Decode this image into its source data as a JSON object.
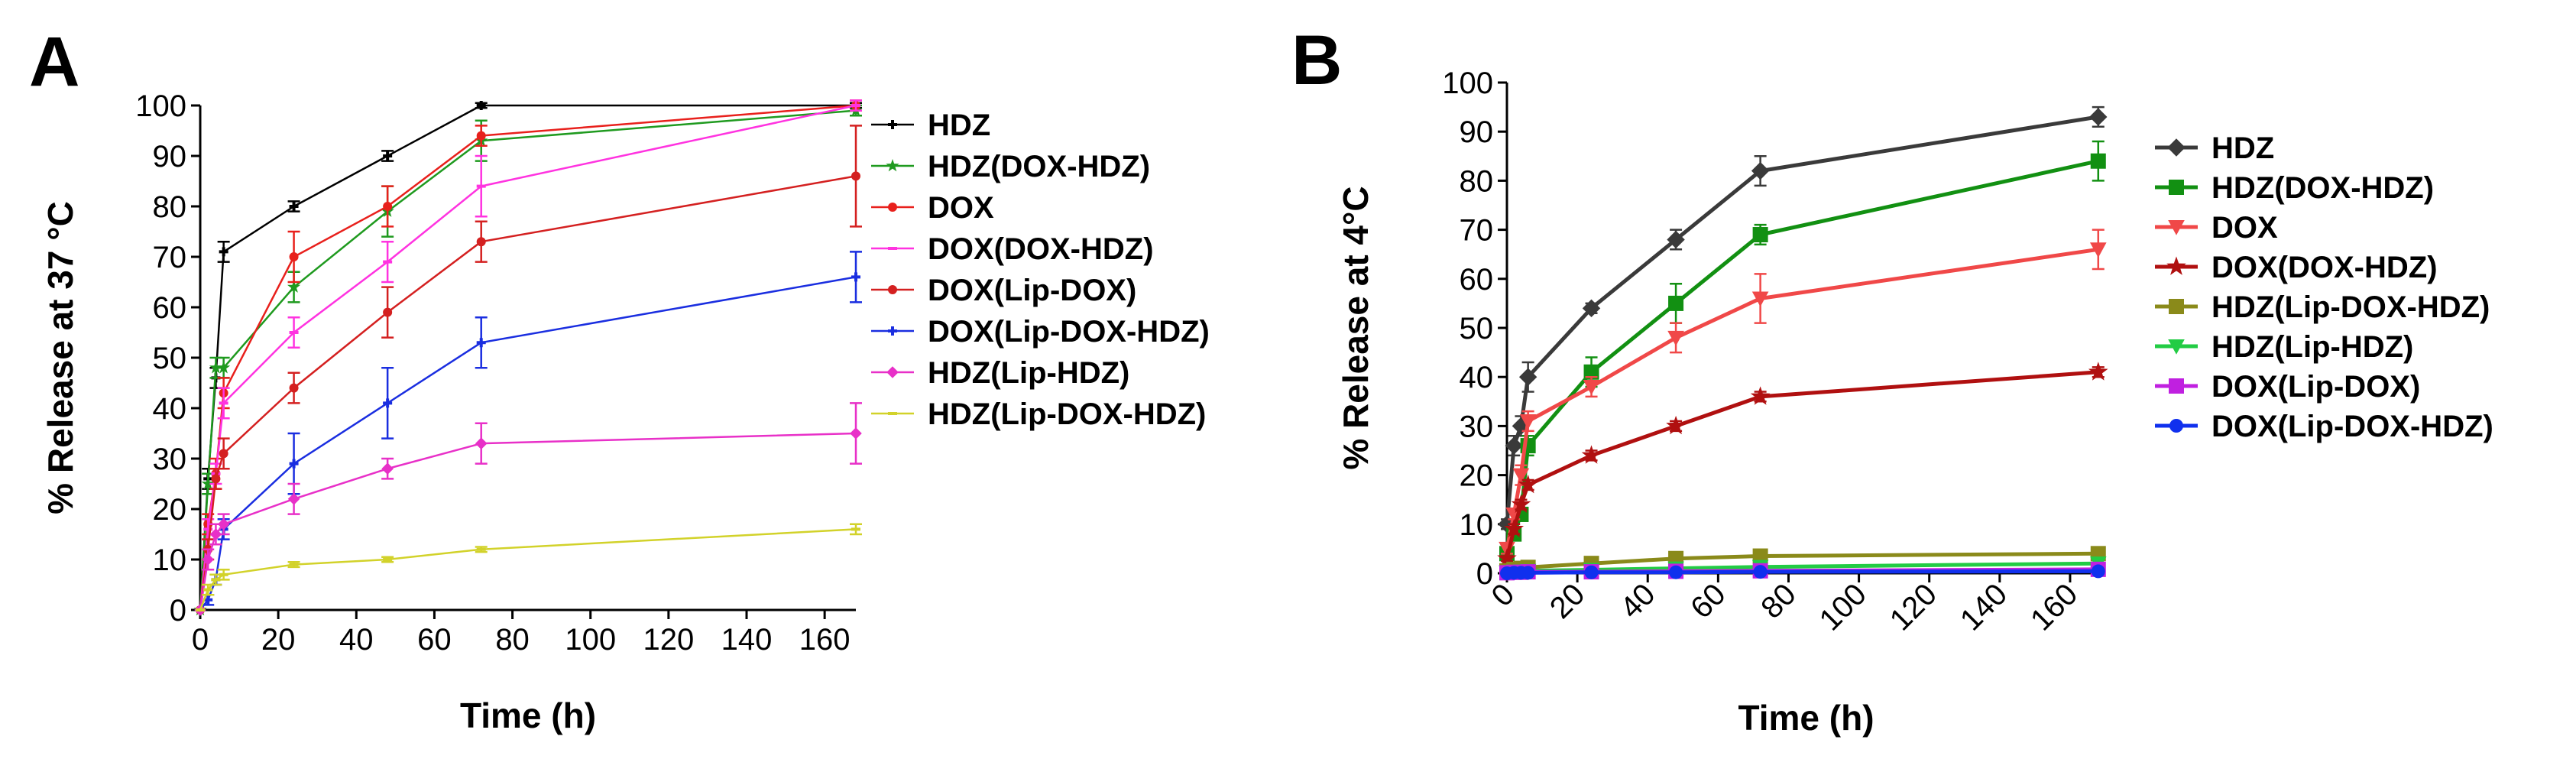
{
  "panel_labels": {
    "A": "A",
    "B": "B"
  },
  "chart_data": [
    {
      "type": "line",
      "panel": "A",
      "title": "",
      "xlabel": "Time (h)",
      "ylabel": "% Release at 37 °C",
      "xlim": [
        0,
        168
      ],
      "ylim": [
        0,
        100
      ],
      "xticks": [
        0,
        20,
        40,
        60,
        80,
        100,
        120,
        140,
        160
      ],
      "yticks": [
        0,
        10,
        20,
        30,
        40,
        50,
        60,
        70,
        80,
        90,
        100
      ],
      "x": [
        0,
        2,
        4,
        6,
        24,
        48,
        72,
        168
      ],
      "series": [
        {
          "name": "HDZ",
          "color": "#000000",
          "marker": "cross",
          "values": [
            0,
            26,
            46,
            71,
            80,
            90,
            100,
            100
          ],
          "errors": [
            0,
            2,
            2,
            2,
            1,
            1,
            0.5,
            0.5
          ]
        },
        {
          "name": "HDZ(DOX-HDZ)",
          "color": "#1f9a1f",
          "marker": "star",
          "values": [
            0,
            25,
            48,
            48,
            64,
            79,
            93,
            99
          ],
          "errors": [
            0,
            2,
            2,
            2,
            3,
            5,
            4,
            1
          ]
        },
        {
          "name": "DOX",
          "color": "#e8201c",
          "marker": "dot",
          "values": [
            0,
            17,
            27,
            43,
            70,
            80,
            94,
            100
          ],
          "errors": [
            0,
            2,
            3,
            3,
            5,
            4,
            2,
            1
          ]
        },
        {
          "name": "DOX(DOX-HDZ)",
          "color": "#ff33e0",
          "marker": "dash",
          "values": [
            0,
            16,
            27,
            41,
            55,
            69,
            84,
            100
          ],
          "errors": [
            0,
            2,
            2,
            3,
            3,
            4,
            6,
            1
          ]
        },
        {
          "name": "DOX(Lip-DOX)",
          "color": "#d42020",
          "marker": "dot",
          "values": [
            0,
            12,
            26,
            31,
            44,
            59,
            73,
            86
          ],
          "errors": [
            0,
            2,
            2,
            3,
            3,
            5,
            4,
            10
          ]
        },
        {
          "name": "DOX(Lip-DOX-HDZ)",
          "color": "#1a2ee0",
          "marker": "cross",
          "values": [
            0,
            2,
            6,
            16,
            29,
            41,
            53,
            66
          ],
          "errors": [
            0,
            1,
            1,
            2,
            6,
            7,
            5,
            5
          ]
        },
        {
          "name": "HDZ(Lip-HDZ)",
          "color": "#e830c8",
          "marker": "diamond",
          "values": [
            0,
            10,
            15,
            17,
            22,
            28,
            33,
            35
          ],
          "errors": [
            0,
            2,
            2,
            2,
            3,
            2,
            4,
            6
          ]
        },
        {
          "name": "HDZ(Lip-DOX-HDZ)",
          "color": "#d2d22a",
          "marker": "dash",
          "values": [
            0,
            4,
            6,
            7,
            9,
            10,
            12,
            16
          ],
          "errors": [
            0,
            1,
            1,
            1,
            0.5,
            0.5,
            0.5,
            1
          ]
        }
      ]
    },
    {
      "type": "line",
      "panel": "B",
      "title": "",
      "xlabel": "Time (h)",
      "ylabel": "% Release  at 4°C",
      "xlim": [
        0,
        170
      ],
      "ylim": [
        0,
        100
      ],
      "xticks": [
        0,
        20,
        40,
        60,
        80,
        100,
        120,
        140,
        160
      ],
      "yticks": [
        0,
        10,
        20,
        30,
        40,
        50,
        60,
        70,
        80,
        90,
        100
      ],
      "x": [
        0,
        2,
        4,
        6,
        24,
        48,
        72,
        168
      ],
      "series": [
        {
          "name": "HDZ",
          "color": "#3a3a3a",
          "marker": "diamond",
          "values": [
            10,
            26,
            30,
            40,
            54,
            68,
            82,
            93
          ],
          "errors": [
            1,
            2,
            2,
            3,
            1,
            2,
            3,
            2
          ]
        },
        {
          "name": "HDZ(DOX-HDZ)",
          "color": "#129012",
          "marker": "square",
          "values": [
            4,
            8,
            12,
            26,
            41,
            55,
            69,
            84
          ],
          "errors": [
            1,
            1,
            1,
            2,
            3,
            4,
            2,
            4
          ]
        },
        {
          "name": "DOX",
          "color": "#f04848",
          "marker": "triangle",
          "values": [
            5,
            12,
            20,
            31,
            38,
            48,
            56,
            66
          ],
          "errors": [
            1,
            1,
            2,
            2,
            2,
            3,
            5,
            4
          ]
        },
        {
          "name": "DOX(DOX-HDZ)",
          "color": "#b01010",
          "marker": "star",
          "values": [
            3,
            9,
            14,
            18,
            24,
            30,
            36,
            41
          ],
          "errors": [
            0.5,
            1,
            1,
            1,
            1,
            1,
            1,
            1
          ]
        },
        {
          "name": "HDZ(Lip-DOX-HDZ)",
          "color": "#8a8a1a",
          "marker": "square",
          "values": [
            0.5,
            0.8,
            1,
            1.2,
            2,
            3,
            3.5,
            4
          ],
          "errors": [
            0,
            0,
            0,
            0,
            0.3,
            0.3,
            0.3,
            0.3
          ]
        },
        {
          "name": "HDZ(Lip-HDZ)",
          "color": "#22cc44",
          "marker": "triangle",
          "values": [
            0.2,
            0.3,
            0.4,
            0.5,
            0.7,
            1,
            1.3,
            2
          ],
          "errors": [
            0,
            0,
            0,
            0,
            0,
            0,
            0,
            0
          ]
        },
        {
          "name": "DOX(Lip-DOX)",
          "color": "#c020e0",
          "marker": "square",
          "values": [
            0.1,
            0.2,
            0.2,
            0.3,
            0.3,
            0.4,
            0.5,
            0.8
          ],
          "errors": [
            0,
            0,
            0,
            0,
            0,
            0,
            0,
            0
          ]
        },
        {
          "name": "DOX(Lip-DOX-HDZ)",
          "color": "#1030ee",
          "marker": "dot",
          "values": [
            0,
            0.1,
            0.1,
            0.1,
            0.2,
            0.2,
            0.3,
            0.4
          ],
          "errors": [
            0,
            0,
            0,
            0,
            0,
            0,
            0,
            0
          ]
        }
      ]
    }
  ]
}
